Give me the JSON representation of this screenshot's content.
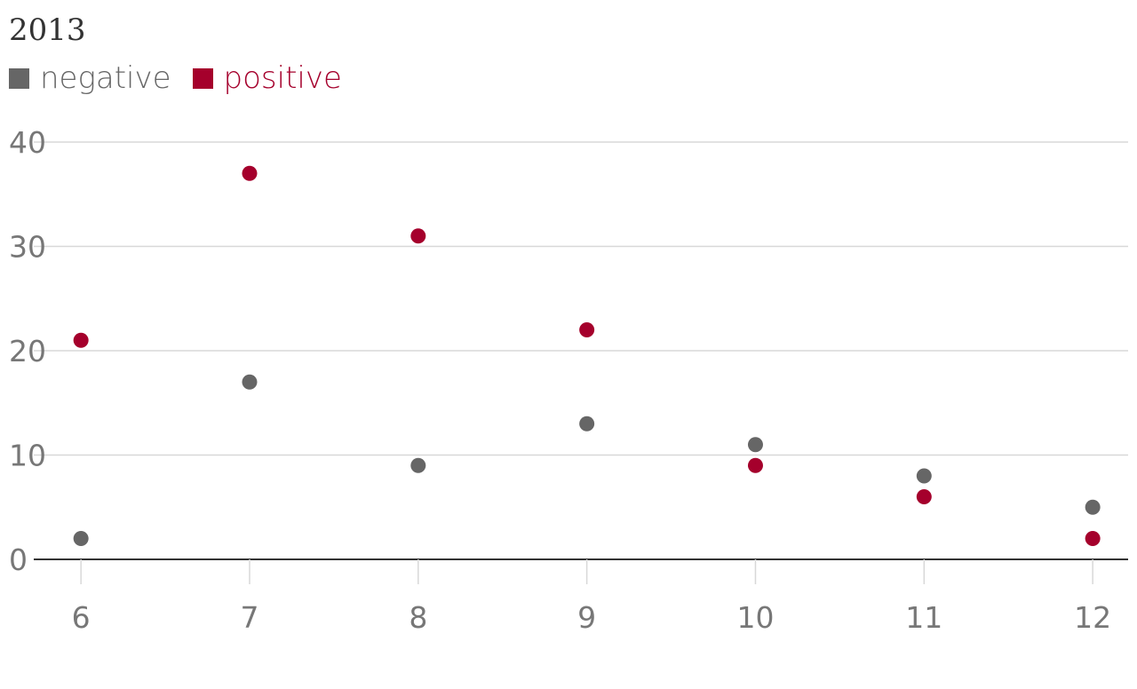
{
  "chart_data": {
    "type": "scatter",
    "title": "2013",
    "xlabel": "",
    "ylabel": "",
    "x": [
      6,
      7,
      8,
      9,
      10,
      11,
      12
    ],
    "xlim": [
      5.72,
      12.21
    ],
    "ylim": [
      0,
      40
    ],
    "x_ticks": [
      "6",
      "7",
      "8",
      "9",
      "10",
      "11",
      "12"
    ],
    "y_ticks": [
      "0",
      "10",
      "20",
      "30",
      "40"
    ],
    "grid": true,
    "legend_position": "top-left",
    "series": [
      {
        "name": "negative",
        "color": "#666666",
        "values": [
          2,
          17,
          9,
          13,
          11,
          8,
          5
        ]
      },
      {
        "name": "positive",
        "color": "#a5002c",
        "values": [
          21,
          37,
          31,
          22,
          9,
          6,
          2
        ]
      }
    ]
  }
}
